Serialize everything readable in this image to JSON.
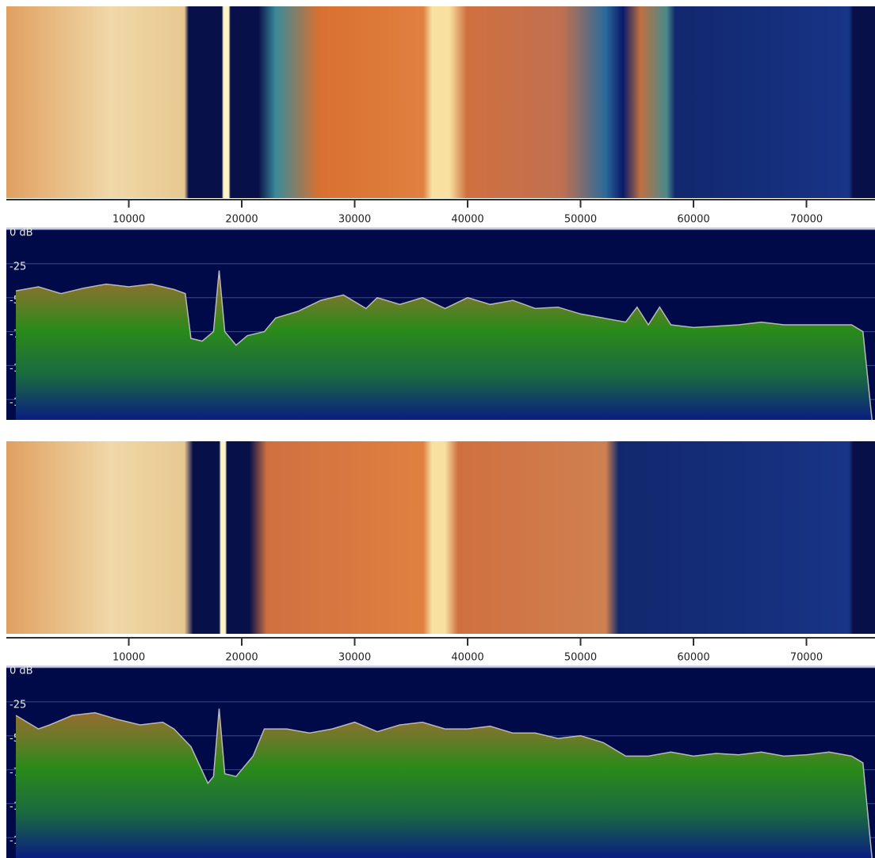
{
  "chart_data": [
    {
      "type": "area",
      "x": [
        0,
        2000,
        4000,
        6000,
        8000,
        10000,
        12000,
        14000,
        15000,
        15500,
        16500,
        17500,
        18000,
        18500,
        19500,
        20500,
        22000,
        23000,
        25000,
        27000,
        29000,
        31000,
        32000,
        34000,
        36000,
        38000,
        40000,
        42000,
        44000,
        46000,
        48000,
        50000,
        52000,
        54000,
        55000,
        56000,
        57000,
        58000,
        60000,
        62000,
        64000,
        66000,
        68000,
        70000,
        72000,
        74000,
        75000,
        75800
      ],
      "values": [
        -45,
        -42,
        -47,
        -43,
        -40,
        -42,
        -40,
        -44,
        -47,
        -80,
        -82,
        -75,
        -30,
        -75,
        -85,
        -78,
        -75,
        -65,
        -60,
        -52,
        -48,
        -58,
        -50,
        -55,
        -50,
        -58,
        -50,
        -55,
        -52,
        -58,
        -57,
        -62,
        -65,
        -68,
        -57,
        -70,
        -57,
        -70,
        -72,
        -71,
        -70,
        -68,
        -70,
        -70,
        -70,
        -70,
        -75,
        -140
      ],
      "xlim": [
        0,
        76000
      ],
      "xticks": [
        10000,
        20000,
        30000,
        40000,
        50000,
        60000,
        70000
      ],
      "ylim": [
        -140,
        0
      ],
      "yticks": [
        {
          "value": 0,
          "label": "0 dB"
        },
        -25,
        -50,
        -75,
        -100,
        -125
      ],
      "grid": true,
      "color": "#b8b8b8"
    },
    {
      "type": "area",
      "x": [
        0,
        2000,
        3000,
        5000,
        7000,
        9000,
        11000,
        13000,
        14000,
        15500,
        17000,
        17500,
        18000,
        18500,
        19500,
        21000,
        22000,
        24000,
        26000,
        28000,
        30000,
        32000,
        34000,
        36000,
        38000,
        40000,
        42000,
        44000,
        46000,
        48000,
        50000,
        52000,
        54000,
        56000,
        58000,
        60000,
        62000,
        64000,
        66000,
        68000,
        70000,
        72000,
        74000,
        75000,
        75800
      ],
      "values": [
        -35,
        -45,
        -42,
        -35,
        -33,
        -38,
        -42,
        -40,
        -45,
        -58,
        -85,
        -80,
        -30,
        -78,
        -80,
        -65,
        -45,
        -45,
        -48,
        -45,
        -40,
        -47,
        -42,
        -40,
        -45,
        -45,
        -43,
        -48,
        -48,
        -52,
        -50,
        -55,
        -65,
        -65,
        -62,
        -65,
        -63,
        -64,
        -62,
        -65,
        -64,
        -62,
        -65,
        -70,
        -140
      ],
      "xlim": [
        0,
        76000
      ],
      "xticks": [
        10000,
        20000,
        30000,
        40000,
        50000,
        60000,
        70000
      ],
      "ylim": [
        -140,
        0
      ],
      "yticks": [
        {
          "value": 0,
          "label": "0 dB"
        },
        -25,
        -50,
        -75,
        -100,
        -125
      ],
      "grid": true,
      "color": "#b8b8b8"
    }
  ]
}
